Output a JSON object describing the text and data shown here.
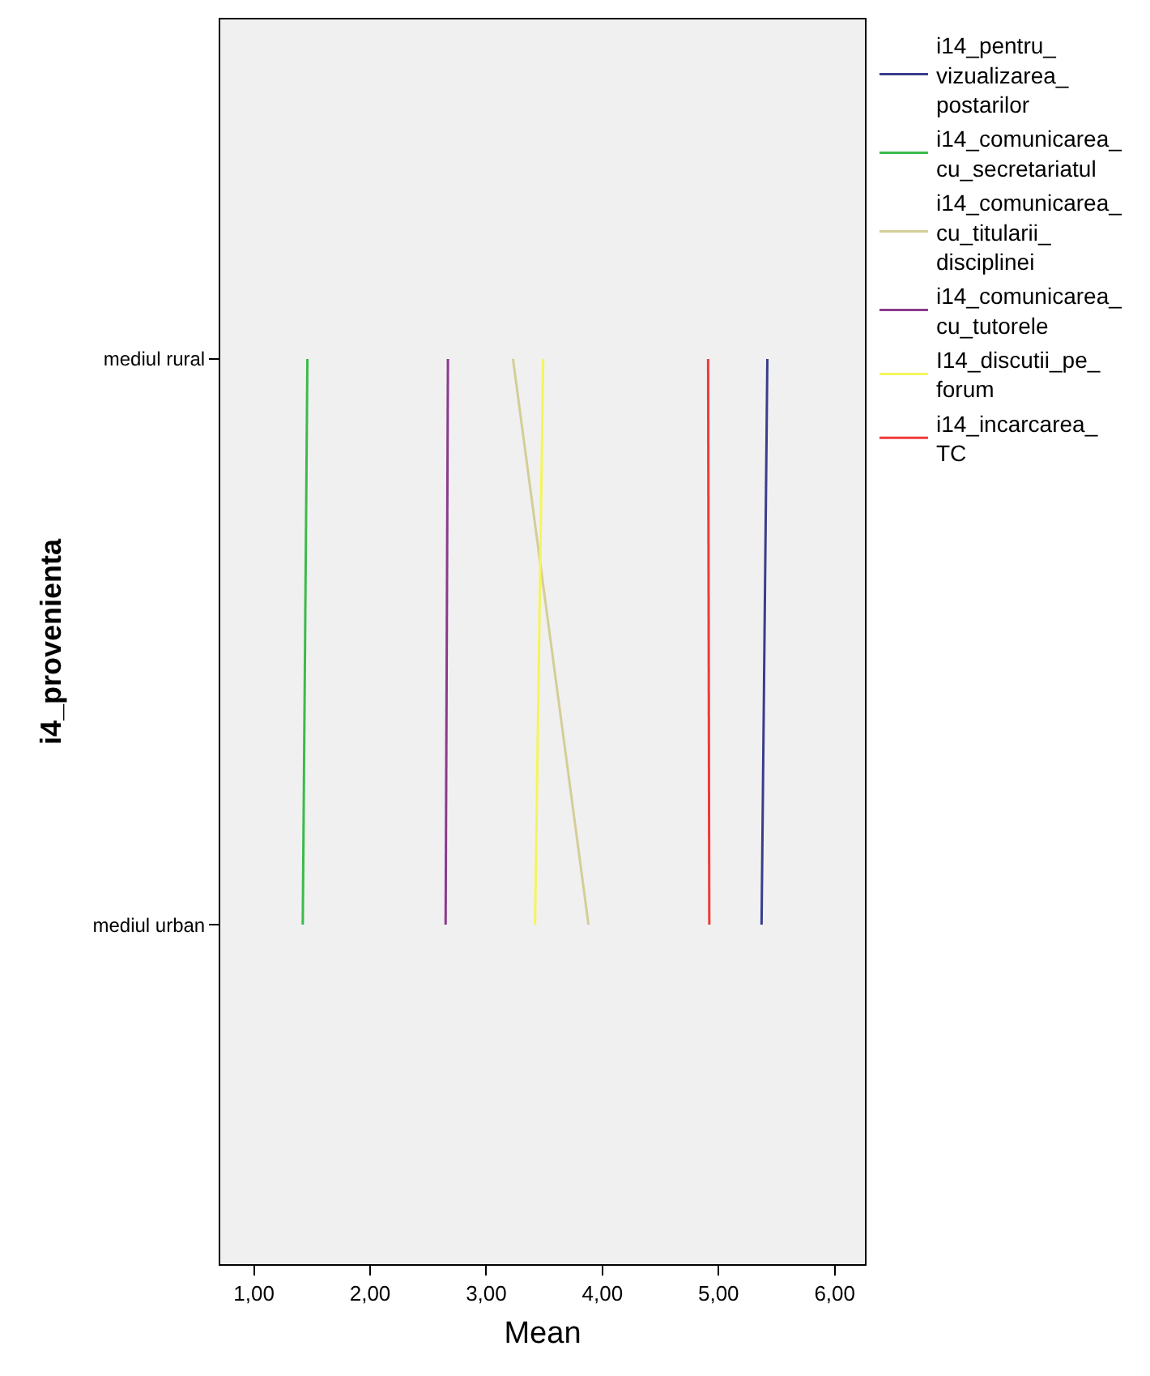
{
  "chart_data": {
    "type": "line",
    "orientation": "horizontal",
    "xlabel": "Mean",
    "ylabel": "i4_provenienta",
    "categories": [
      "mediul rural",
      "mediul urban"
    ],
    "series": [
      {
        "name": "i14_pentru_vizualizarea_postarilor",
        "color": "#3a3d8c",
        "values": [
          5.42,
          5.37
        ]
      },
      {
        "name": "i14_comunicarea_cu_secretariatul",
        "color": "#3cba4a",
        "values": [
          1.46,
          1.42
        ]
      },
      {
        "name": "i14_comunicarea_cu_titularii_disciplinei",
        "color": "#d3ce97",
        "values": [
          3.23,
          3.88
        ]
      },
      {
        "name": "i14_comunicarea_cu_tutorele",
        "color": "#8a3a8c",
        "values": [
          2.67,
          2.65
        ]
      },
      {
        "name": "I14_discutii_pe_forum",
        "color": "#f5f55a",
        "values": [
          3.49,
          3.42
        ]
      },
      {
        "name": "i14_incarcarea_TC",
        "color": "#f03a3a",
        "values": [
          4.91,
          4.92
        ]
      }
    ],
    "xlim": [
      0.71,
      6.26
    ],
    "xticks": [
      {
        "value": 1,
        "label": "1,00"
      },
      {
        "value": 2,
        "label": "2,00"
      },
      {
        "value": 3,
        "label": "3,00"
      },
      {
        "value": 4,
        "label": "4,00"
      },
      {
        "value": 5,
        "label": "5,00"
      },
      {
        "value": 6,
        "label": "6,00"
      }
    ],
    "grid": false,
    "legend": "right",
    "marker": "none",
    "line_style": "solid"
  }
}
